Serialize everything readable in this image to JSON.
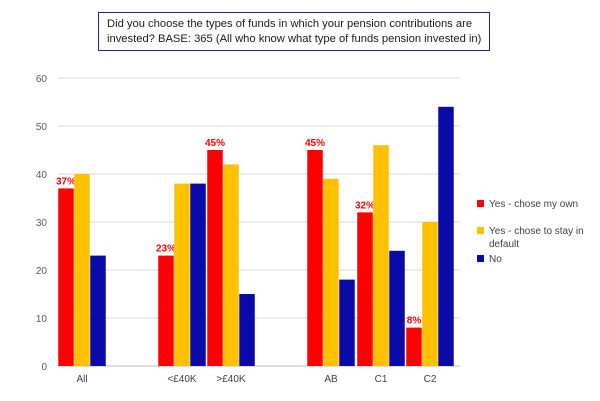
{
  "chart_data": {
    "type": "bar",
    "title_lines": [
      "Did you choose the types of funds in which your pension contributions are",
      "invested?   BASE: 365 (All who know what type of funds pension invested in)"
    ],
    "xlabel": "",
    "ylabel": "",
    "ylim": [
      0,
      60
    ],
    "yticks": [
      "0",
      "10",
      "20",
      "30",
      "40",
      "50",
      "60"
    ],
    "grid": true,
    "legend_position": "right",
    "categories": [
      "All",
      "<£40K",
      ">£40K",
      "AB",
      "C1",
      "C2"
    ],
    "series": [
      {
        "name": "Yes - chose my own",
        "color": "#ff0000",
        "values": [
          37,
          23,
          45,
          45,
          32,
          8
        ],
        "labels": [
          "37%",
          "23%",
          "45%",
          "45%",
          "32%",
          "8%"
        ]
      },
      {
        "name": "Yes - chose to stay in default",
        "color": "#ffc000",
        "values": [
          40,
          38,
          42,
          39,
          46,
          30
        ]
      },
      {
        "name": "No",
        "color": "#0a0aa8",
        "values": [
          23,
          38,
          15,
          18,
          24,
          54
        ]
      }
    ],
    "legend_lines": [
      [
        "Yes - chose my own"
      ],
      [
        "Yes - chose to stay in",
        "default"
      ],
      [
        "No"
      ]
    ],
    "label_color": "#ff0000"
  }
}
